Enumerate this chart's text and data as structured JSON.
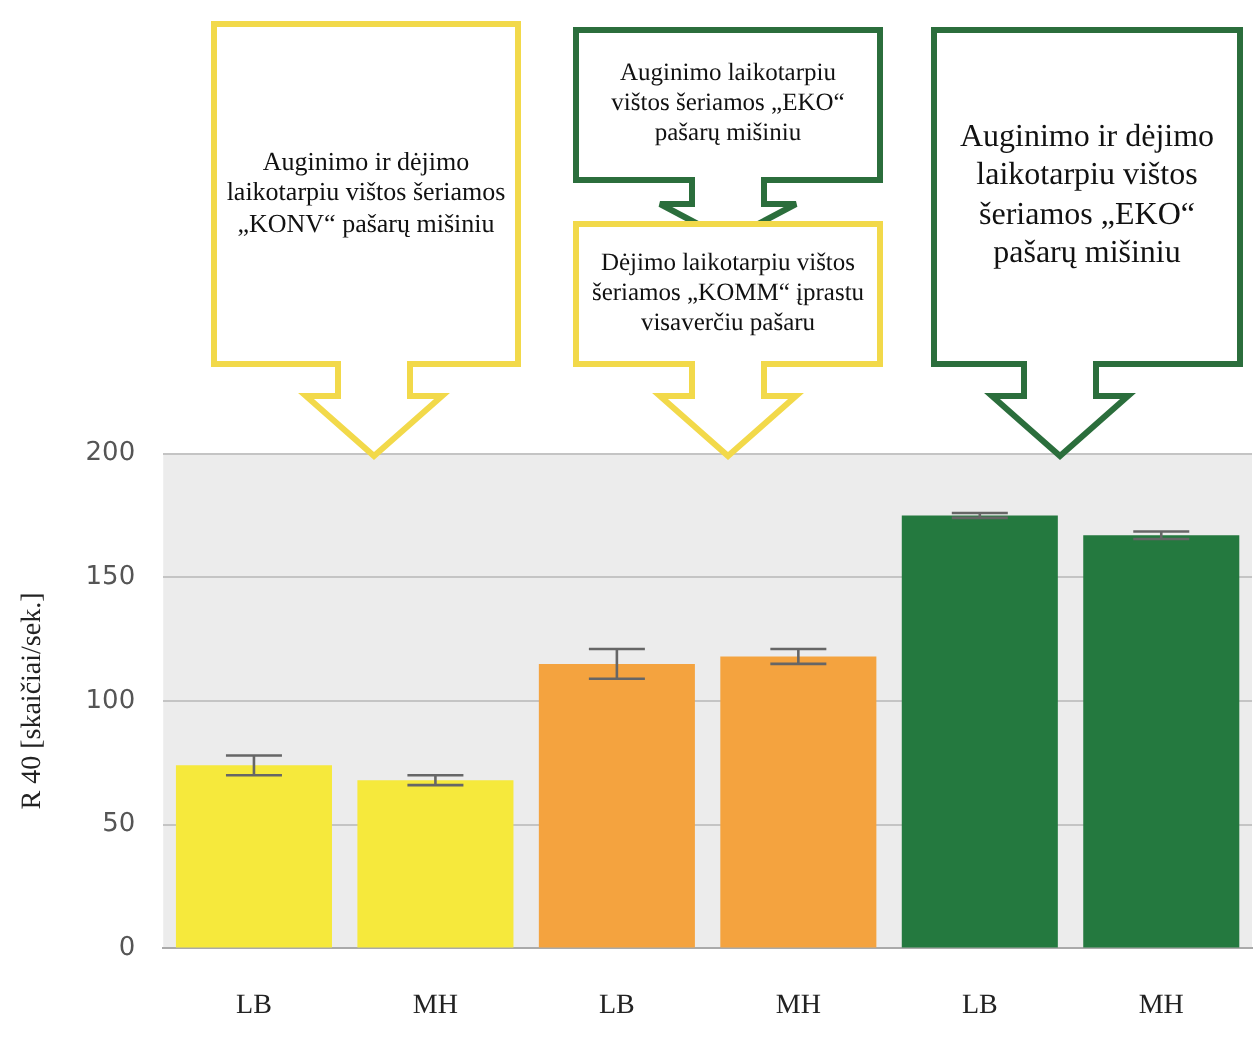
{
  "chart_data": {
    "type": "bar",
    "ylabel": "R 40 [skaičiai/sek.]",
    "categories": [
      "LB",
      "MH",
      "LB",
      "MH",
      "LB",
      "MH"
    ],
    "values": [
      74,
      68,
      115,
      118,
      175,
      167
    ],
    "errors": [
      4,
      2,
      6,
      3,
      1,
      1.5
    ],
    "colors": [
      "#f6e93c",
      "#f6e93c",
      "#f4a33f",
      "#f4a33f",
      "#24793f",
      "#24793f"
    ],
    "ylim": [
      0,
      200
    ],
    "yticks": [
      0,
      50,
      100,
      150,
      200
    ],
    "grid": "y",
    "legend": false,
    "annotations": [
      "Auginimo ir dėjimo laikotarpiu vištos šeriamos „KONV“ pašarų mišiniu",
      "Auginimo laikotarpiu vištos šeriamos „EKO“ pašarų mišiniu",
      "Dėjimo laikotarpiu vištos šeriamos „KOMM“ įprastu visaverčiu pašaru",
      "Auginimo ir dėjimo laikotarpiu vištos šeriamos „EKO“ pašarų mišiniu"
    ]
  }
}
